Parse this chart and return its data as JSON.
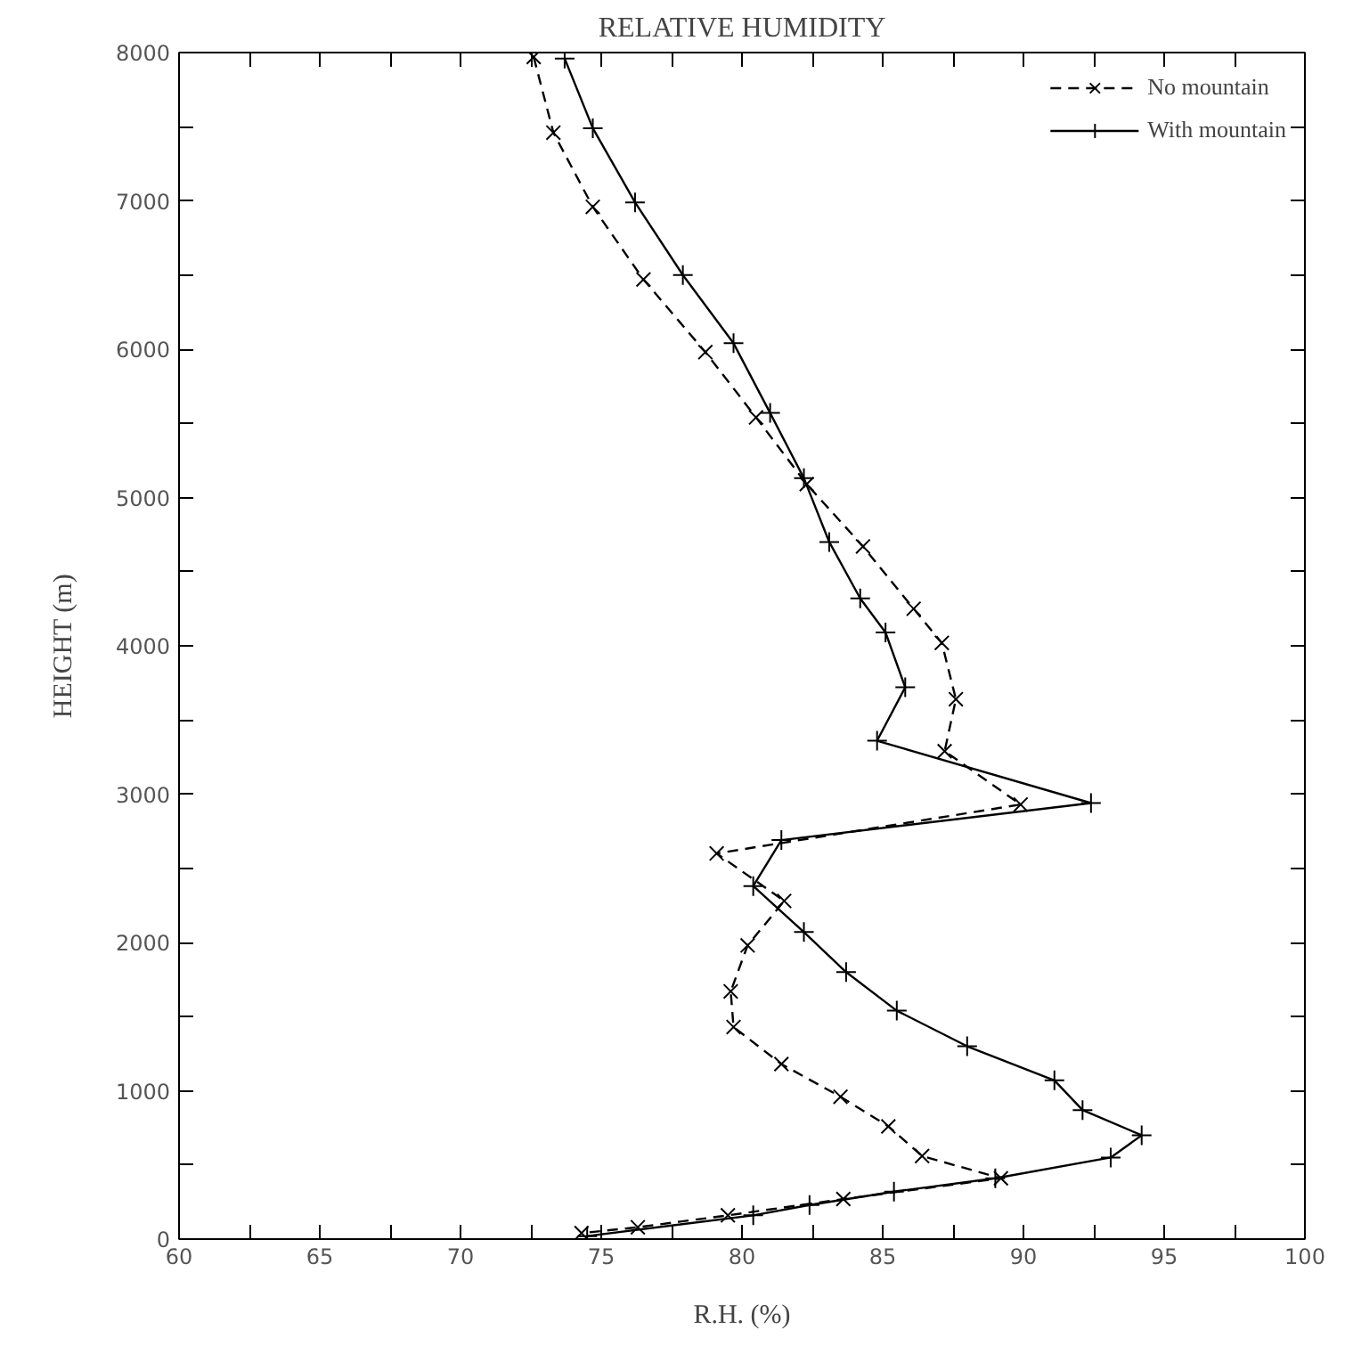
{
  "chart_data": {
    "type": "line",
    "title": "RELATIVE HUMIDITY",
    "xlabel": "R.H. (%)",
    "ylabel": "HEIGHT (m)",
    "xlim": [
      60,
      100
    ],
    "ylim": [
      0,
      8000
    ],
    "xticks": [
      60,
      {
        "value": 62.5,
        "label": null
      },
      65,
      {
        "value": 67.5,
        "label": null
      },
      70,
      {
        "value": 72.5,
        "label": null
      },
      75,
      {
        "value": 77.5,
        "label": null
      },
      80,
      {
        "value": 82.5,
        "label": null
      },
      85,
      {
        "value": 87.5,
        "label": null
      },
      90,
      {
        "value": 92.5,
        "label": null
      },
      95,
      {
        "value": 97.5,
        "label": null
      },
      100
    ],
    "yticks": [
      0,
      {
        "value": 500,
        "label": null
      },
      1000,
      {
        "value": 1500,
        "label": null
      },
      2000,
      {
        "value": 2500,
        "label": null
      },
      3000,
      {
        "value": 3500,
        "label": null
      },
      4000,
      {
        "value": 4500,
        "label": null
      },
      5000,
      {
        "value": 5500,
        "label": null
      },
      6000,
      {
        "value": 6500,
        "label": null
      },
      7000,
      {
        "value": 7500,
        "label": null
      },
      8000
    ],
    "grid": false,
    "legend": "top right",
    "series": [
      {
        "name": "No mountain",
        "color": "#000000",
        "marker": "cross",
        "line_style": "dashed",
        "x": [
          72.6,
          73.3,
          74.7,
          76.5,
          78.7,
          80.5,
          82.3,
          84.3,
          86.1,
          87.1,
          87.6,
          87.2,
          89.9,
          79.1,
          81.5,
          80.2,
          79.6,
          79.7,
          81.4,
          83.5,
          85.2,
          86.4,
          89.2,
          83.6,
          79.5,
          76.3,
          74.3
        ],
        "values": [
          7970,
          7460,
          6960,
          6470,
          5980,
          5540,
          5090,
          4670,
          4250,
          4020,
          3640,
          3290,
          2930,
          2600,
          2280,
          1980,
          1670,
          1430,
          1180,
          960,
          760,
          560,
          410,
          270,
          160,
          80,
          40
        ]
      },
      {
        "name": "With mountain",
        "color": "#000000",
        "marker": "plus",
        "line_style": "solid",
        "x": [
          73.7,
          74.7,
          76.2,
          77.9,
          79.7,
          81.0,
          82.2,
          83.1,
          84.2,
          85.1,
          85.8,
          84.8,
          92.4,
          81.4,
          80.4,
          82.2,
          83.7,
          85.5,
          88.0,
          91.1,
          92.1,
          94.2,
          93.1,
          89.0,
          85.4,
          82.4,
          80.4,
          74.5
        ],
        "values": [
          7960,
          7490,
          6990,
          6500,
          6040,
          5570,
          5130,
          4700,
          4320,
          4090,
          3720,
          3360,
          2940,
          2690,
          2380,
          2070,
          1800,
          1540,
          1300,
          1070,
          870,
          700,
          550,
          410,
          320,
          230,
          160,
          20
        ]
      }
    ]
  }
}
